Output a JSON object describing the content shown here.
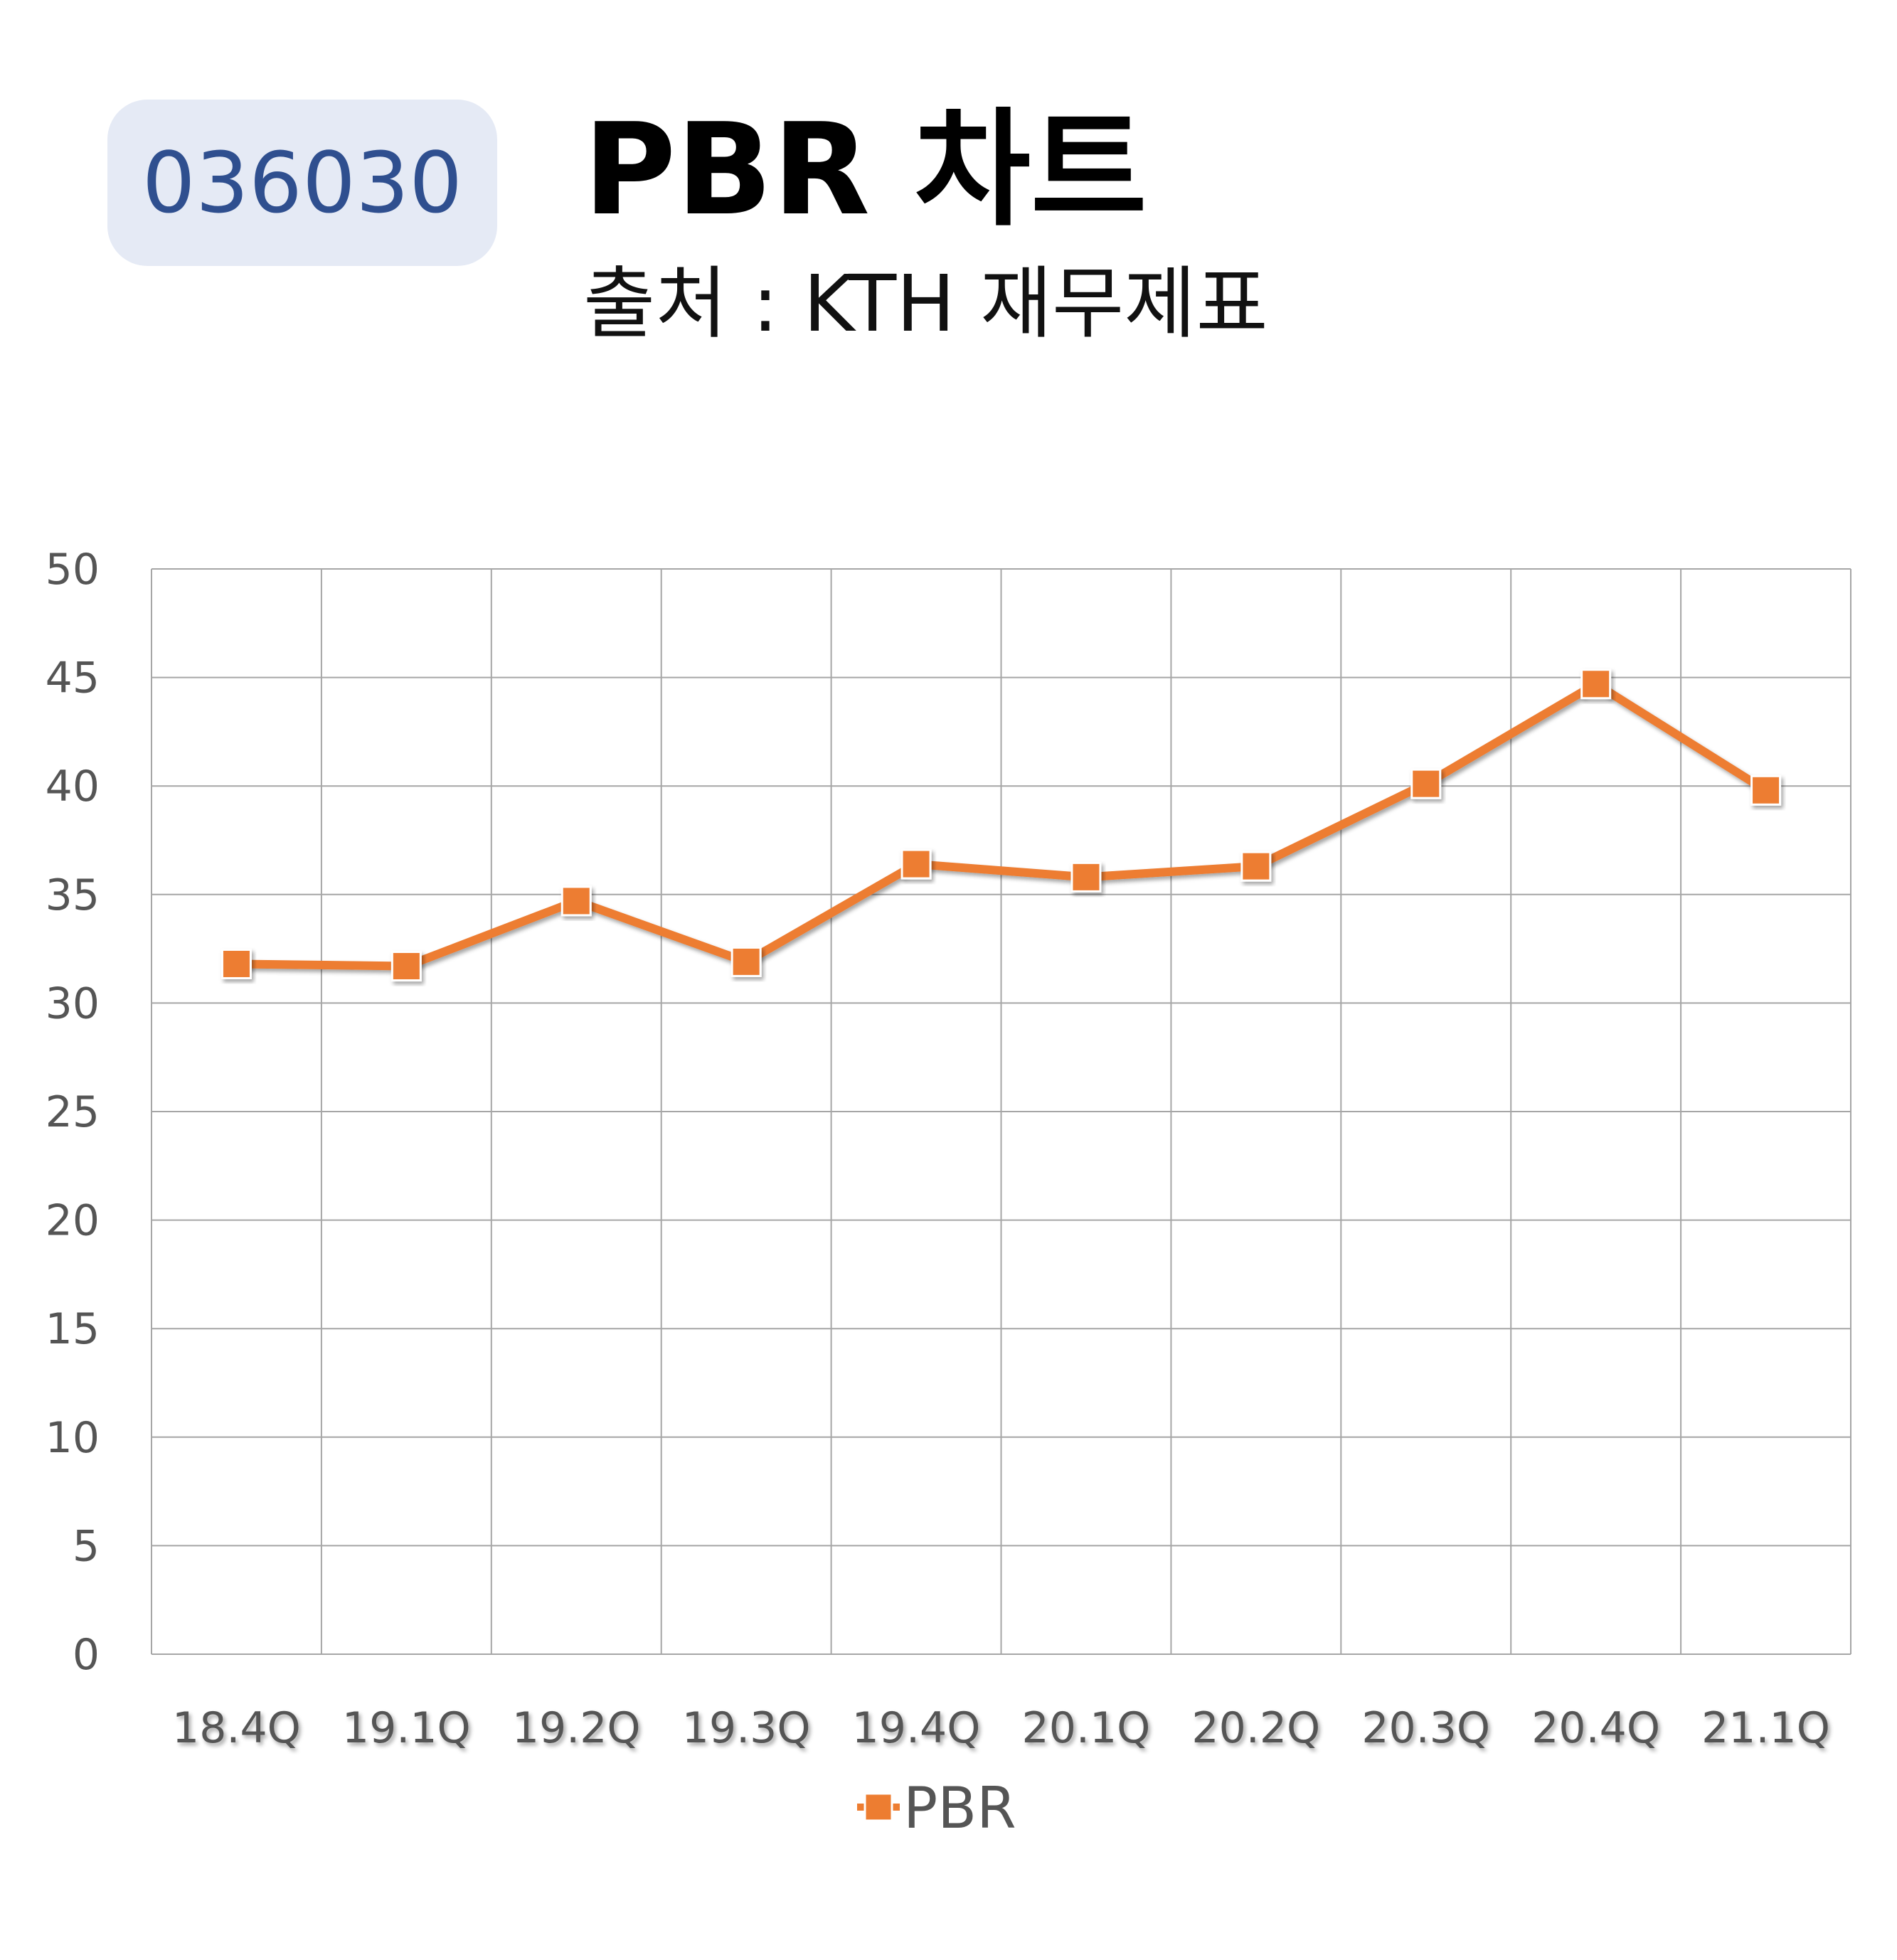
{
  "header": {
    "code": "036030",
    "title": "PBR 차트",
    "subtitle": "출처 : KTH 재무제표"
  },
  "colors": {
    "series": "#ed7d31",
    "grid": "#a6a6a6",
    "badge_bg": "#e5eaf5",
    "badge_text": "#2f4f8f"
  },
  "chart_data": {
    "type": "line",
    "categories": [
      "18.4Q",
      "19.1Q",
      "19.2Q",
      "19.3Q",
      "19.4Q",
      "20.1Q",
      "20.2Q",
      "20.3Q",
      "20.4Q",
      "21.1Q"
    ],
    "series": [
      {
        "name": "PBR",
        "values": [
          31.8,
          31.7,
          34.7,
          31.9,
          36.4,
          35.8,
          36.3,
          40.1,
          44.7,
          39.8
        ],
        "marker": "square"
      }
    ],
    "yticks": [
      0,
      5,
      10,
      15,
      20,
      25,
      30,
      35,
      40,
      45,
      50
    ],
    "ylim": [
      0,
      50
    ],
    "grid": true,
    "legend": "bottom-center"
  }
}
